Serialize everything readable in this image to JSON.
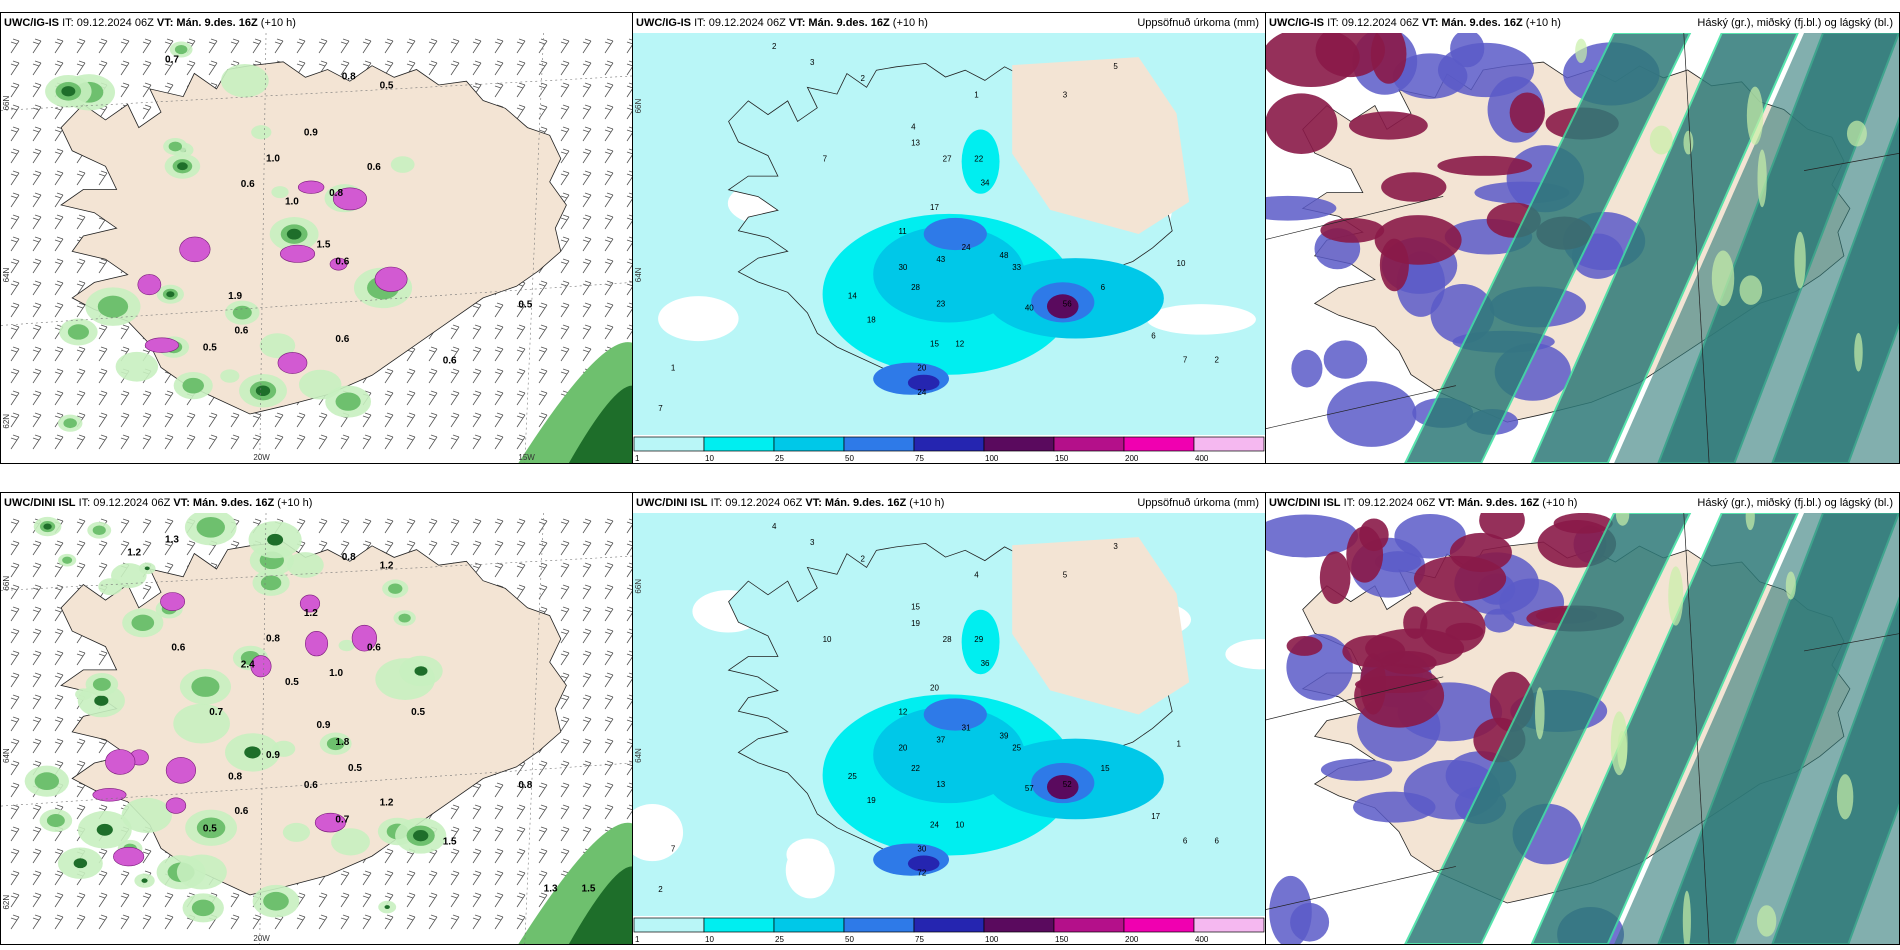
{
  "rows": [
    {
      "model": "UWC/IG-IS",
      "panels": [
        {
          "id": "wind",
          "title_model": "UWC/IG-IS",
          "title_it": "IT: 09.12.2024 06Z",
          "title_vt_label": "VT:",
          "title_vt": "Mán. 9.des. 16Z",
          "title_lead": "(+10 h)",
          "title_right": "",
          "values": [
            {
              "t": "0.7"
            },
            {
              "t": "0.8"
            },
            {
              "t": "0.5"
            },
            {
              "t": "1.0"
            },
            {
              "t": "0.9"
            },
            {
              "t": "0.6"
            },
            {
              "t": "1.0"
            },
            {
              "t": "0.8"
            },
            {
              "t": "0.6"
            },
            {
              "t": "1.5"
            },
            {
              "t": "0.6"
            },
            {
              "t": "0.5"
            },
            {
              "t": "0.6"
            },
            {
              "t": "0.5"
            },
            {
              "t": "1.9"
            },
            {
              "t": "0.6"
            },
            {
              "t": "0.6"
            }
          ],
          "lon_labels": [
            "20W",
            "15W"
          ],
          "lat_labels": [
            "66N",
            "64N",
            "62N"
          ]
        },
        {
          "id": "precip",
          "title_model": "UWC/IG-IS",
          "title_it": "IT: 09.12.2024 06Z",
          "title_vt_label": "VT:",
          "title_vt": "Mán. 9.des. 16Z",
          "title_lead": "(+10 h)",
          "title_right": "Uppsöfnuð úrkoma (mm)",
          "values": [
            {
              "t": "2"
            },
            {
              "t": "3"
            },
            {
              "t": "2"
            },
            {
              "t": "1"
            },
            {
              "t": "3"
            },
            {
              "t": "5"
            },
            {
              "t": "7"
            },
            {
              "t": "4"
            },
            {
              "t": "13"
            },
            {
              "t": "27"
            },
            {
              "t": "22"
            },
            {
              "t": "34"
            },
            {
              "t": "17"
            },
            {
              "t": "11"
            },
            {
              "t": "24"
            },
            {
              "t": "30"
            },
            {
              "t": "43"
            },
            {
              "t": "48"
            },
            {
              "t": "33"
            },
            {
              "t": "28"
            },
            {
              "t": "23"
            },
            {
              "t": "14"
            },
            {
              "t": "18"
            },
            {
              "t": "15"
            },
            {
              "t": "12"
            },
            {
              "t": "20"
            },
            {
              "t": "24"
            },
            {
              "t": "40"
            },
            {
              "t": "56"
            },
            {
              "t": "6"
            },
            {
              "t": "6"
            },
            {
              "t": "7"
            },
            {
              "t": "2"
            },
            {
              "t": "1"
            },
            {
              "t": "7"
            },
            {
              "t": "10"
            }
          ],
          "lat_labels": [
            "66N",
            "64N"
          ]
        },
        {
          "id": "cloud",
          "title_model": "UWC/IG-IS",
          "title_it": "IT: 09.12.2024 06Z",
          "title_vt_label": "VT:",
          "title_vt": "Mán. 9.des. 16Z",
          "title_lead": "(+10 h)",
          "title_right": "Háský (gr.), miðský (fj.bl.) og lágský (bl.)"
        }
      ]
    },
    {
      "model": "UWC/DINI ISL",
      "panels": [
        {
          "id": "wind",
          "title_model": "UWC/DINI ISL",
          "title_it": "IT: 09.12.2024 06Z",
          "title_vt_label": "VT:",
          "title_vt": "Mán. 9.des. 16Z",
          "title_lead": "(+10 h)",
          "title_right": "",
          "values": [
            {
              "t": "1.3"
            },
            {
              "t": "0.8"
            },
            {
              "t": "1.2"
            },
            {
              "t": "0.8"
            },
            {
              "t": "1.2"
            },
            {
              "t": "2.4"
            },
            {
              "t": "0.5"
            },
            {
              "t": "1.0"
            },
            {
              "t": "0.6"
            },
            {
              "t": "0.9"
            },
            {
              "t": "1.8"
            },
            {
              "t": "0.8"
            },
            {
              "t": "0.6"
            },
            {
              "t": "0.5"
            },
            {
              "t": "0.8"
            },
            {
              "t": "0.7"
            },
            {
              "t": "1.5"
            },
            {
              "t": "1.2"
            },
            {
              "t": "0.6"
            },
            {
              "t": "0.7"
            },
            {
              "t": "0.9"
            },
            {
              "t": "0.6"
            },
            {
              "t": "0.5"
            },
            {
              "t": "1.2"
            },
            {
              "t": "0.5"
            },
            {
              "t": "1.3"
            },
            {
              "t": "1.5"
            }
          ],
          "lon_labels": [
            "20W"
          ],
          "lat_labels": [
            "66N",
            "64N",
            "62N"
          ]
        },
        {
          "id": "precip",
          "title_model": "UWC/DINI ISL",
          "title_it": "IT: 09.12.2024 06Z",
          "title_vt_label": "VT:",
          "title_vt": "Mán. 9.des. 16Z",
          "title_lead": "(+10 h)",
          "title_right": "Uppsöfnuð úrkoma (mm)",
          "values": [
            {
              "t": "4"
            },
            {
              "t": "3"
            },
            {
              "t": "2"
            },
            {
              "t": "4"
            },
            {
              "t": "5"
            },
            {
              "t": "3"
            },
            {
              "t": "10"
            },
            {
              "t": "15"
            },
            {
              "t": "19"
            },
            {
              "t": "28"
            },
            {
              "t": "29"
            },
            {
              "t": "36"
            },
            {
              "t": "20"
            },
            {
              "t": "12"
            },
            {
              "t": "31"
            },
            {
              "t": "20"
            },
            {
              "t": "37"
            },
            {
              "t": "39"
            },
            {
              "t": "25"
            },
            {
              "t": "22"
            },
            {
              "t": "13"
            },
            {
              "t": "25"
            },
            {
              "t": "19"
            },
            {
              "t": "24"
            },
            {
              "t": "10"
            },
            {
              "t": "30"
            },
            {
              "t": "72"
            },
            {
              "t": "57"
            },
            {
              "t": "52"
            },
            {
              "t": "15"
            },
            {
              "t": "17"
            },
            {
              "t": "6"
            },
            {
              "t": "6"
            },
            {
              "t": "7"
            },
            {
              "t": "2"
            },
            {
              "t": "1"
            }
          ],
          "lat_labels": [
            "66N",
            "64N"
          ]
        },
        {
          "id": "cloud",
          "title_model": "UWC/DINI ISL",
          "title_it": "IT: 09.12.2024 06Z",
          "title_vt_label": "VT:",
          "title_vt": "Mán. 9.des. 16Z",
          "title_lead": "(+10 h)",
          "title_right": "Háský (gr.), miðský (fj.bl.) og lágský (bl.)"
        }
      ]
    }
  ],
  "legend": {
    "ticks": [
      "1",
      "10",
      "25",
      "50",
      "75",
      "100",
      "150",
      "200",
      "400"
    ],
    "colors": [
      "#b9f6f7",
      "#00eef0",
      "#00c8e8",
      "#2e7ae8",
      "#2525b0",
      "#5a0a5e",
      "#b4108a",
      "#f000b0",
      "#f5b8f0"
    ]
  },
  "colors": {
    "land": "#f3e4d4",
    "sea_precip": "#b9f6f7",
    "green_light": "#c8f0c0",
    "green_mid": "#6ec06e",
    "green_dark": "#1e6e2a",
    "magenta": "#d25ad2",
    "high_cloud": "#8a1a48",
    "mid_cloud": "#5a5ac8",
    "low_cloud": "#2e7a78"
  }
}
